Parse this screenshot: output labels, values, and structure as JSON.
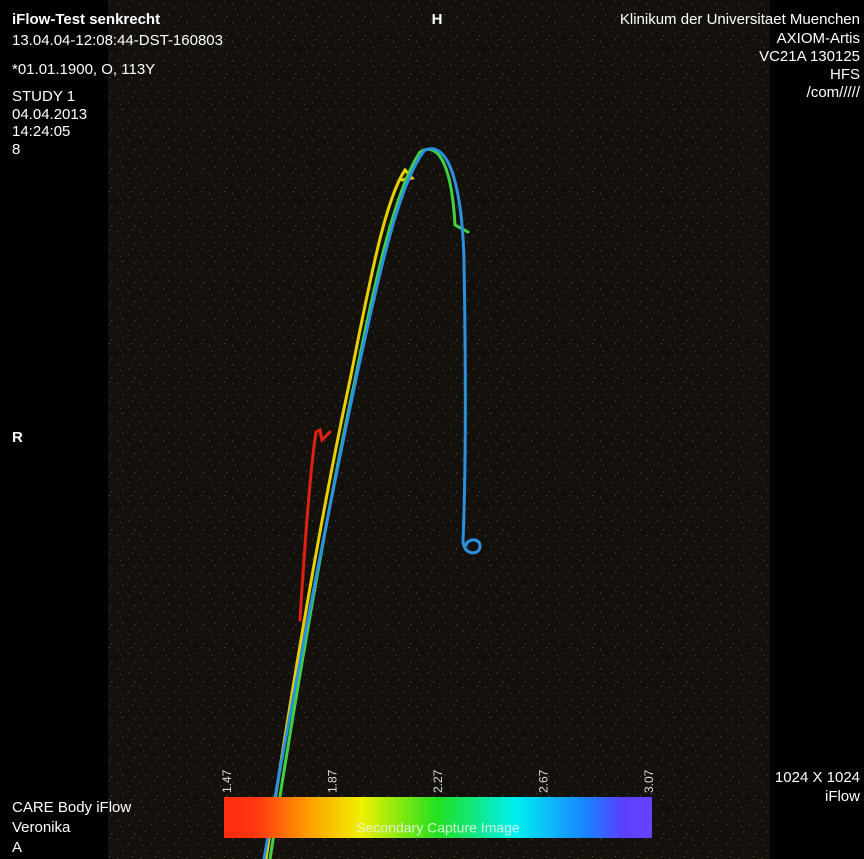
{
  "overlay": {
    "top_left": [
      "iFlow-Test senkrecht",
      "13.04.04-12:08:44-DST-160803",
      "*01.01.1900, O, 113Y",
      "STUDY 1",
      "04.04.2013",
      "14:24:05",
      "8"
    ],
    "top_center": "H",
    "top_right": [
      "Klinikum der Universitaet Muenchen",
      "AXIOM-Artis",
      "VC21A 130125",
      "HFS",
      "/com/////"
    ],
    "left_marker": "R",
    "bottom_left": [
      "CARE Body iFlow",
      "Veronika",
      "A"
    ],
    "bottom_right": [
      "1024 X 1024",
      "iFlow"
    ]
  },
  "color_bar": {
    "ticks": [
      "1.47",
      "1.87",
      "2.27",
      "2.67",
      "3.07"
    ],
    "caption": "Secondary Capture Image"
  }
}
